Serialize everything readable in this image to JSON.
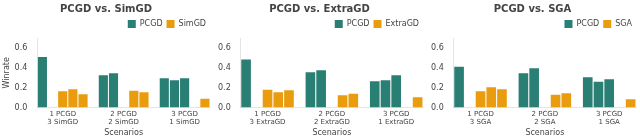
{
  "chart_data": [
    {
      "type": "bar",
      "title": "PCGD vs. SimGD",
      "xlabel": "Scenarios",
      "ylabel": "Winrate",
      "categories": [
        "1 PCGD\n3 SimGD",
        "2 PCGD\n2 SimGD",
        "3 PCGD\n1 SimGD"
      ],
      "series": [
        {
          "name": "PCGD",
          "color": "#2a7f74",
          "values": [
            [
              0.51
            ],
            [
              0.325,
              0.345
            ],
            [
              0.295,
              0.275,
              0.295
            ]
          ]
        },
        {
          "name": "SimGD",
          "color": "#e89c0e",
          "values": [
            [
              0.165,
              0.185,
              0.135
            ],
            [
              0.17,
              0.155
            ],
            [
              0.09
            ]
          ]
        }
      ],
      "ylim": [
        0,
        0.7
      ],
      "yticks": [
        {
          "value": 0,
          "label": "0.0"
        },
        0.2,
        0.4,
        0.6
      ],
      "grid": false,
      "legend": "upper right"
    },
    {
      "type": "bar",
      "title": "PCGD vs. ExtraGD",
      "xlabel": "Scenarios",
      "categories": [
        "1 PCGD\n3 ExtraGD",
        "2 PCGD\n2 ExtraGD",
        "3 PCGD\n1 ExtraGD"
      ],
      "series": [
        {
          "name": "PCGD",
          "color": "#2a7f74",
          "values": [
            [
              0.485
            ],
            [
              0.355,
              0.375
            ],
            [
              0.265,
              0.275,
              0.325
            ]
          ]
        },
        {
          "name": "ExtraGD",
          "color": "#e89c0e",
          "values": [
            [
              0.18,
              0.155,
              0.175
            ],
            [
              0.125,
              0.14
            ],
            [
              0.105
            ]
          ]
        }
      ],
      "ylim": [
        0,
        0.7
      ],
      "yticks": [
        {
          "value": 0,
          "label": "0.0"
        },
        0.2,
        0.4,
        0.6
      ],
      "grid": false,
      "legend": "upper right"
    },
    {
      "type": "bar",
      "title": "PCGD vs. SGA",
      "xlabel": "Scenarios",
      "categories": [
        "1 PCGD\n3 SGA",
        "2 PCGD\n2 SGA",
        "3 PCGD\n1 SGA"
      ],
      "series": [
        {
          "name": "PCGD",
          "color": "#2a7f74",
          "values": [
            [
              0.41
            ],
            [
              0.345,
              0.395
            ],
            [
              0.305,
              0.26,
              0.285
            ]
          ]
        },
        {
          "name": "SGA",
          "color": "#e89c0e",
          "values": [
            [
              0.165,
              0.205,
              0.185
            ],
            [
              0.13,
              0.145
            ],
            [
              0.085
            ]
          ]
        }
      ],
      "ylim": [
        0,
        0.7
      ],
      "yticks": [
        {
          "value": 0,
          "label": "0.0"
        },
        0.2,
        0.4,
        0.6
      ],
      "grid": false,
      "legend": "upper right"
    }
  ]
}
